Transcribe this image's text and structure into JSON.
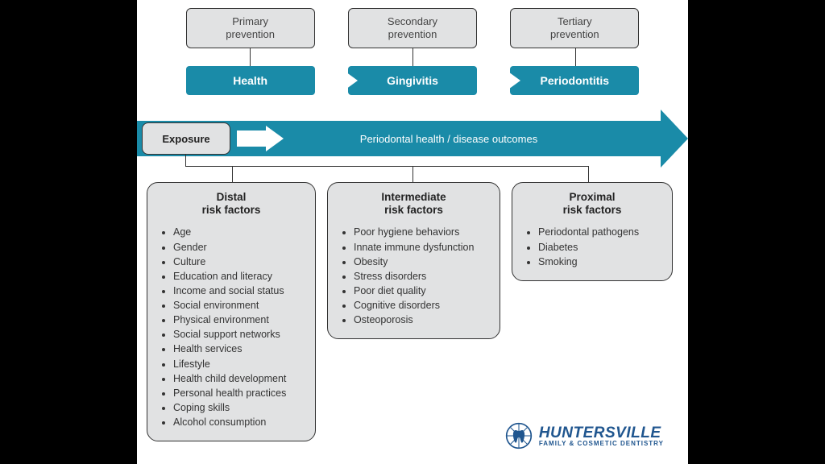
{
  "layout": {
    "canvas_bg": "#ffffff",
    "page_bg": "#000000",
    "box_bg": "#e1e2e3",
    "box_border": "#333333",
    "teal": "#1a8ba8",
    "logo_blue": "#20568f"
  },
  "prevention": [
    {
      "label": "Primary\nprevention"
    },
    {
      "label": "Secondary\nprevention"
    },
    {
      "label": "Tertiary\nprevention"
    }
  ],
  "stages": [
    {
      "label": "Health"
    },
    {
      "label": "Gingivitis"
    },
    {
      "label": "Periodontitis"
    }
  ],
  "exposure_label": "Exposure",
  "outcome_label": "Periodontal health / disease outcomes",
  "factors": [
    {
      "title": "Distal\nrisk factors",
      "items": [
        "Age",
        "Gender",
        "Culture",
        "Education and literacy",
        "Income and social status",
        "Social environment",
        "Physical environment",
        "Social support networks",
        "Health services",
        "Lifestyle",
        "Health child development",
        "Personal health practices",
        "Coping skills",
        "Alcohol consumption"
      ]
    },
    {
      "title": "Intermediate\nrisk factors",
      "items": [
        "Poor hygiene behaviors",
        "Innate immune dysfunction",
        "Obesity",
        "Stress disorders",
        "Poor diet quality",
        "Cognitive disorders",
        "Osteoporosis"
      ]
    },
    {
      "title": "Proximal\nrisk factors",
      "items": [
        "Periodontal pathogens",
        "Diabetes",
        "Smoking"
      ]
    }
  ],
  "logo": {
    "main": "HUNTERSVILLE",
    "sub": "FAMILY & COSMETIC DENTISTRY"
  }
}
